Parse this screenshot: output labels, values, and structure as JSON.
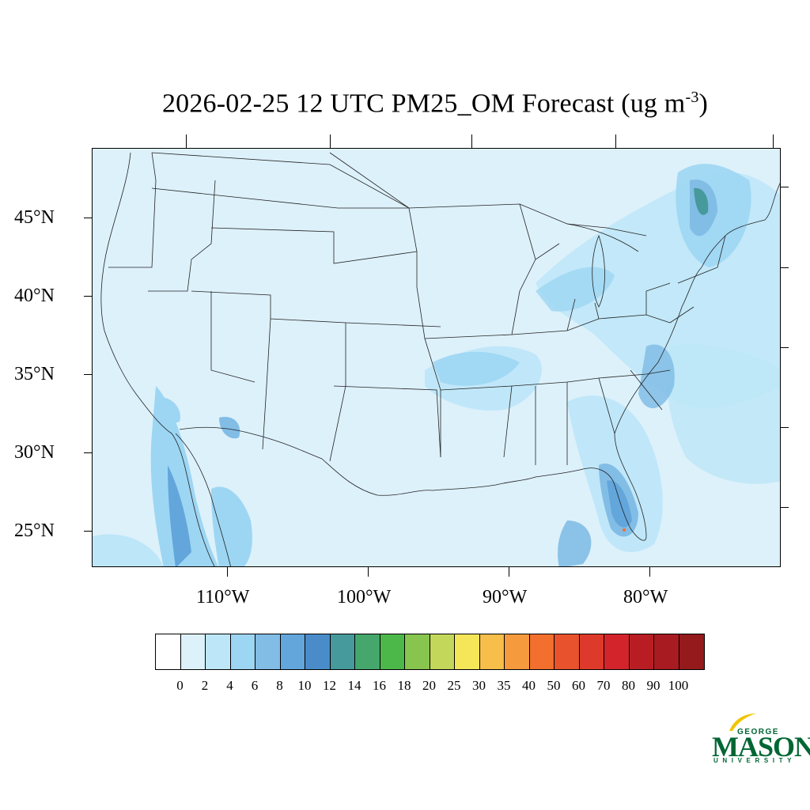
{
  "title": {
    "main": "2026-02-25 12 UTC PM25_OM Forecast (ug m",
    "sup": "-3",
    "close": ")"
  },
  "lat_labels": [
    "45°N",
    "40°N",
    "35°N",
    "30°N",
    "25°N"
  ],
  "lon_labels": [
    "110°W",
    "100°W",
    "90°W",
    "80°W"
  ],
  "colorbar": {
    "colors": [
      "#ffffff",
      "#ddf1fb",
      "#bde6f8",
      "#9dd6f3",
      "#82bde6",
      "#63a6dc",
      "#4a8cca",
      "#479a9c",
      "#45a76c",
      "#4db84a",
      "#87c54f",
      "#c3d85a",
      "#f5e659",
      "#f7be4a",
      "#f59a3d",
      "#f26f2d",
      "#e8522d",
      "#dd3a2b",
      "#d4242b",
      "#b81d24",
      "#a71b21",
      "#941a1c"
    ],
    "labels": [
      "0",
      "2",
      "4",
      "6",
      "8",
      "10",
      "12",
      "14",
      "16",
      "18",
      "20",
      "25",
      "30",
      "35",
      "40",
      "50",
      "60",
      "70",
      "80",
      "90",
      "100"
    ]
  },
  "logo": {
    "line1": "GEORGE",
    "line2": "MASON",
    "line3": "UNIVERSITY"
  }
}
